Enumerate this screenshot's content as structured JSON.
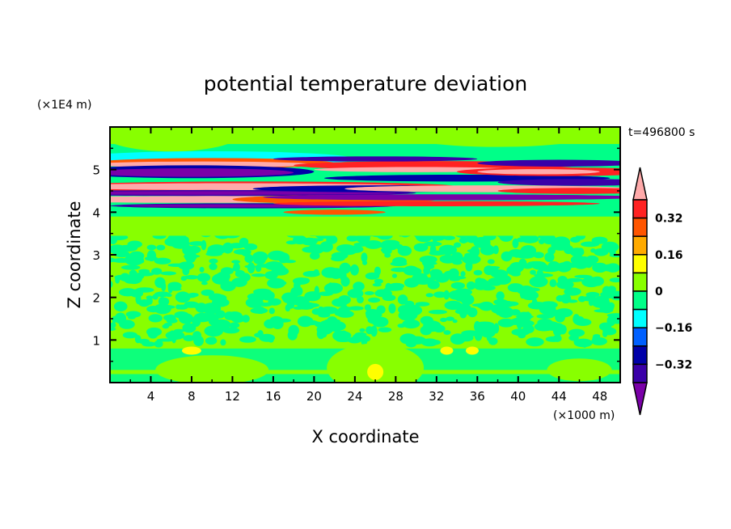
{
  "chart_data": {
    "type": "heatmap",
    "title": "potential temperature deviation",
    "xlabel": "X coordinate",
    "ylabel": "Z coordinate",
    "x_unit": "(×1000 m)",
    "y_unit": "(×1E4 m)",
    "time_label": "t=496800 s",
    "xlim": [
      0,
      50
    ],
    "ylim": [
      0,
      6
    ],
    "x_ticks": [
      4,
      8,
      12,
      16,
      20,
      24,
      28,
      32,
      36,
      40,
      44,
      48
    ],
    "x_tick_labels": [
      "4",
      "8",
      "12",
      "16",
      "20",
      "24",
      "28",
      "32",
      "36",
      "40",
      "44",
      "48"
    ],
    "y_ticks": [
      1,
      2,
      3,
      4,
      5
    ],
    "y_tick_labels": [
      "1",
      "2",
      "3",
      "4",
      "5"
    ],
    "colorbar": {
      "levels": [
        -0.4,
        -0.32,
        -0.24,
        -0.16,
        -0.08,
        0,
        0.08,
        0.16,
        0.24,
        0.32,
        0.4
      ],
      "label_values": [
        0.32,
        0.16,
        0,
        -0.16,
        -0.32
      ],
      "labels": [
        "0.32",
        "0.16",
        "0",
        "−0.16",
        "−0.32"
      ],
      "colors": [
        "#7a00a8",
        "#3a00a8",
        "#0000a8",
        "#0060ff",
        "#00ffff",
        "#00ff88",
        "#88ff00",
        "#ffff00",
        "#ffaa00",
        "#ff5500",
        "#ff2222",
        "#ffaaaa"
      ],
      "extend": "both"
    }
  }
}
